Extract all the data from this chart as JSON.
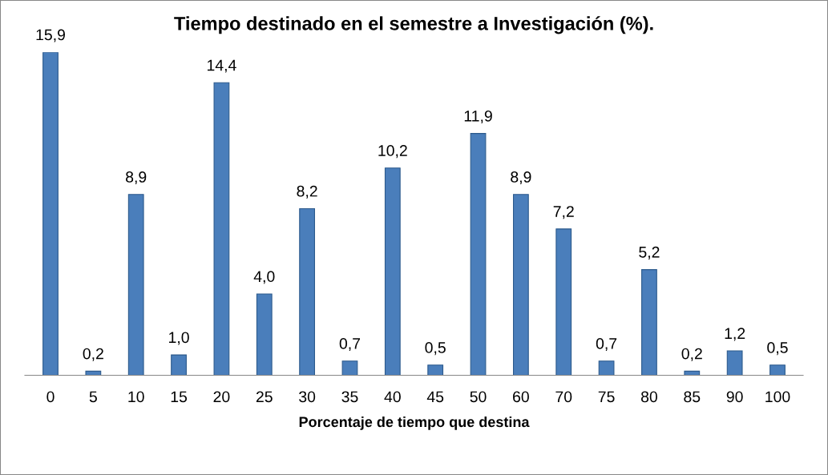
{
  "chart_data": {
    "type": "bar",
    "title": "Tiempo destinado en el semestre a Investigación (%).",
    "xlabel": "Porcentaje de tiempo que destina",
    "categories": [
      "0",
      "5",
      "10",
      "15",
      "20",
      "25",
      "30",
      "35",
      "40",
      "45",
      "50",
      "60",
      "70",
      "75",
      "80",
      "85",
      "90",
      "100"
    ],
    "values": [
      15.9,
      0.2,
      8.9,
      1.0,
      14.4,
      4.0,
      8.2,
      0.7,
      10.2,
      0.5,
      11.9,
      8.9,
      7.2,
      0.7,
      5.2,
      0.2,
      1.2,
      0.5
    ],
    "value_labels": [
      "15,9",
      "0,2",
      "8,9",
      "1,0",
      "14,4",
      "4,0",
      "8,2",
      "0,7",
      "10,2",
      "0,5",
      "11,9",
      "8,9",
      "7,2",
      "0,7",
      "5,2",
      "0,2",
      "1,2",
      "0,5"
    ],
    "color": "#4a7ebb",
    "grid": false,
    "legend": false,
    "tick_labels": "x"
  }
}
